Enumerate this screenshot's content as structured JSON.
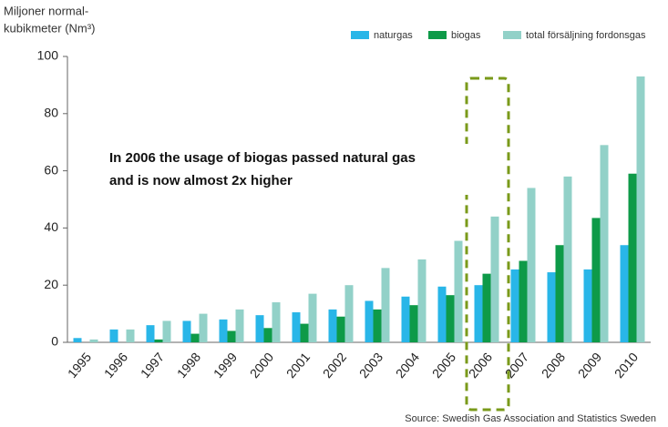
{
  "chart_data": {
    "type": "bar",
    "ylabel": [
      "Miljoner normal-",
      "kubikmeter (Nm³)"
    ],
    "categories": [
      "1995",
      "1996",
      "1997",
      "1998",
      "1999",
      "2000",
      "2001",
      "2002",
      "2003",
      "2004",
      "2005",
      "2006",
      "2007",
      "2008",
      "2009",
      "2010"
    ],
    "series": [
      {
        "name": "naturgas",
        "color": "#29b6e8",
        "values": [
          1.5,
          4.5,
          6,
          7.5,
          8,
          9.5,
          10.5,
          11.5,
          14.5,
          16,
          19.5,
          20,
          25.5,
          24.5,
          25.5,
          34
        ]
      },
      {
        "name": "biogas",
        "color": "#0e9a48",
        "values": [
          0,
          0,
          1,
          3,
          4,
          5,
          6.5,
          9,
          11.5,
          13,
          16.5,
          24,
          28.5,
          34,
          43.5,
          59
        ]
      },
      {
        "name": "total försäljning fordonsgas",
        "color": "#92d1c8",
        "values": [
          1,
          4.5,
          7.5,
          10,
          11.5,
          14,
          17,
          20,
          26,
          29,
          35.5,
          44,
          54,
          58,
          69,
          93
        ]
      }
    ],
    "ylim": [
      0,
      100
    ],
    "yticks": [
      0,
      20,
      40,
      60,
      80,
      100
    ],
    "grid": false,
    "legend": "top-right",
    "annotation": [
      "In 2006 the usage of biogas passed natural gas",
      "and is now almost 2x higher"
    ],
    "source": "Source: Swedish Gas Association and Statistics Sweden"
  }
}
